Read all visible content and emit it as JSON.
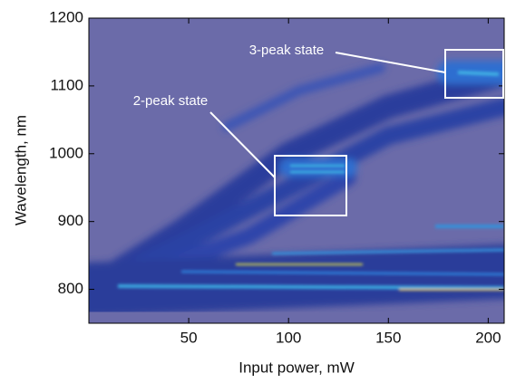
{
  "chart_data": {
    "type": "heatmap",
    "x_label": "Input power, mW",
    "y_label": "Wavelength, nm",
    "xlim": [
      0,
      208
    ],
    "xticks": [
      50,
      100,
      150,
      200
    ],
    "ylim": [
      750,
      1200
    ],
    "yticks": [
      800,
      900,
      1000,
      1100,
      1200
    ],
    "annotations": [
      "2-peak state",
      "3-peak state"
    ],
    "background": "#6b6ba9"
  }
}
